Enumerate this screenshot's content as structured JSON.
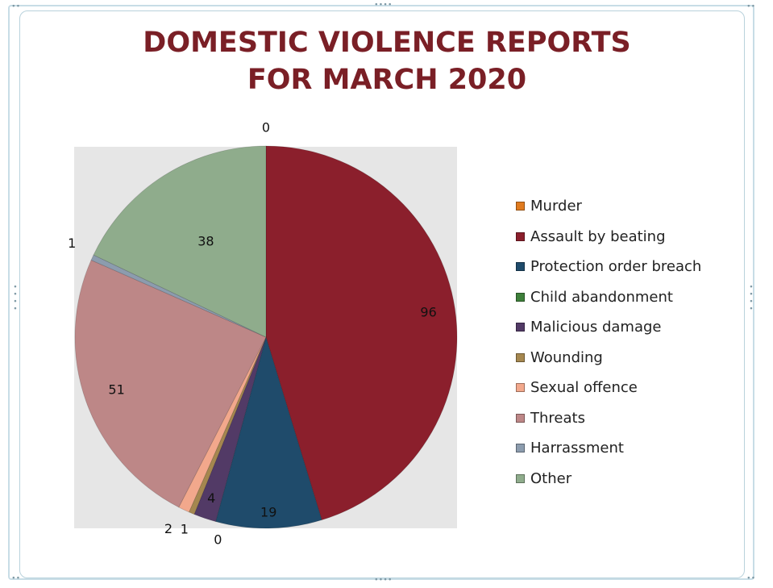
{
  "chart_data": {
    "type": "pie",
    "title_lines": [
      "DOMESTIC VIOLENCE REPORTS",
      "FOR MARCH 2020"
    ],
    "categories": [
      "Murder",
      "Assault by beating",
      "Protection order breach",
      "Child abandonment",
      "Malicious damage",
      "Wounding",
      "Sexual offence",
      "Threats",
      "Harrassment",
      "Other"
    ],
    "values": [
      0,
      96,
      19,
      0,
      4,
      1,
      2,
      51,
      1,
      38
    ],
    "colors": [
      "#e07b1f",
      "#8b1f2c",
      "#1f4b6b",
      "#3e7f3a",
      "#523a66",
      "#a5874f",
      "#f2a88c",
      "#bd8787",
      "#8c9cae",
      "#8fac8c"
    ],
    "plot_background": "#e6e6e6",
    "legend_position": "right",
    "data_labels": true
  }
}
